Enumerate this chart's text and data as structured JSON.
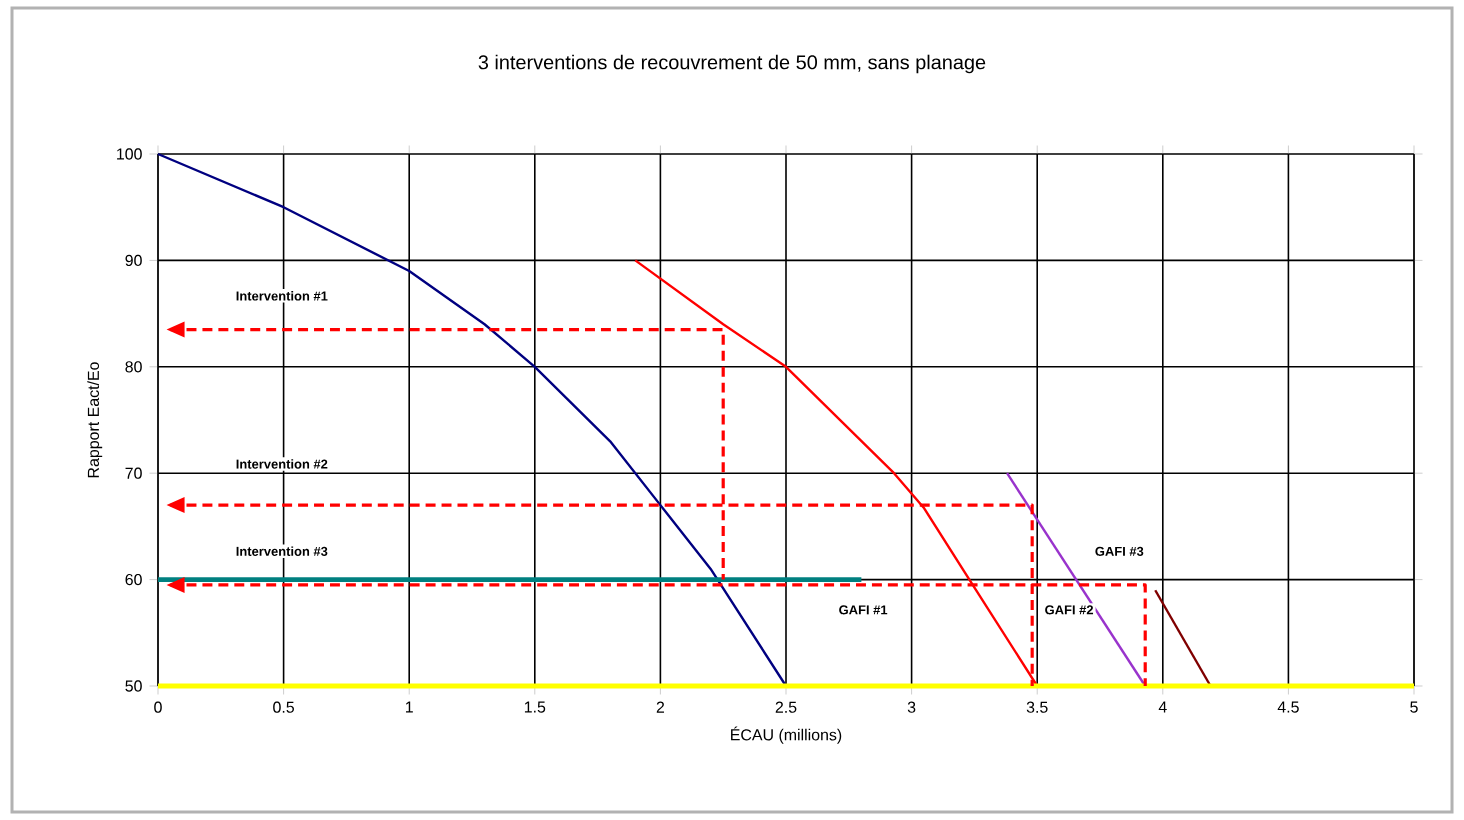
{
  "chart_data": {
    "type": "line",
    "title": "3 interventions de recouvrement de 50 mm, sans planage",
    "xlabel": "ÉCAU (millions)",
    "ylabel": "Rapport Eact/Eo",
    "xlim": [
      0,
      5
    ],
    "ylim": [
      50,
      100
    ],
    "xticks": [
      0,
      0.5,
      1,
      1.5,
      2,
      2.5,
      3,
      3.5,
      4,
      4.5,
      5
    ],
    "yticks": [
      50,
      60,
      70,
      80,
      90,
      100
    ],
    "grid": true,
    "marker": "none",
    "series": [
      {
        "color": "#000080",
        "x": [
          0,
          0.5,
          1,
          1.3,
          1.5,
          1.8,
          2,
          2.2,
          2.5
        ],
        "values": [
          100,
          95,
          89,
          84,
          80,
          73,
          67,
          61,
          50
        ]
      },
      {
        "color": "#ff0000",
        "x": [
          1.9,
          2.25,
          2.5,
          2.93,
          3.05,
          3.23,
          3.5
        ],
        "values": [
          90,
          84,
          80,
          70,
          66.7,
          60,
          50
        ]
      },
      {
        "color": "#9933cc",
        "x": [
          3.38,
          3.93
        ],
        "values": [
          70,
          50
        ]
      },
      {
        "color": "#800000",
        "x": [
          3.97,
          4.19
        ],
        "values": [
          59,
          50
        ]
      },
      {
        "color": "#008080",
        "x": [
          0,
          2.8
        ],
        "values": [
          60,
          60
        ]
      },
      {
        "color": "#ffff00",
        "x": [
          0,
          5
        ],
        "values": [
          50,
          50
        ]
      },
      {
        "color": "#ff0000",
        "line_style": "dashed",
        "x": [
          0.05,
          2.25,
          2.25
        ],
        "values": [
          83.5,
          83.5,
          60
        ]
      },
      {
        "color": "#ff0000",
        "line_style": "dashed",
        "x": [
          0.05,
          3.48,
          3.48
        ],
        "values": [
          67,
          67,
          50
        ]
      },
      {
        "color": "#ff0000",
        "line_style": "dashed",
        "x": [
          0.05,
          3.93,
          3.93
        ],
        "values": [
          59.5,
          59.5,
          50
        ]
      }
    ],
    "annotations": [
      "Intervention #1",
      "Intervention #2",
      "Intervention #3",
      "GAFI #1",
      "GAFI #2",
      "GAFI #3"
    ]
  }
}
